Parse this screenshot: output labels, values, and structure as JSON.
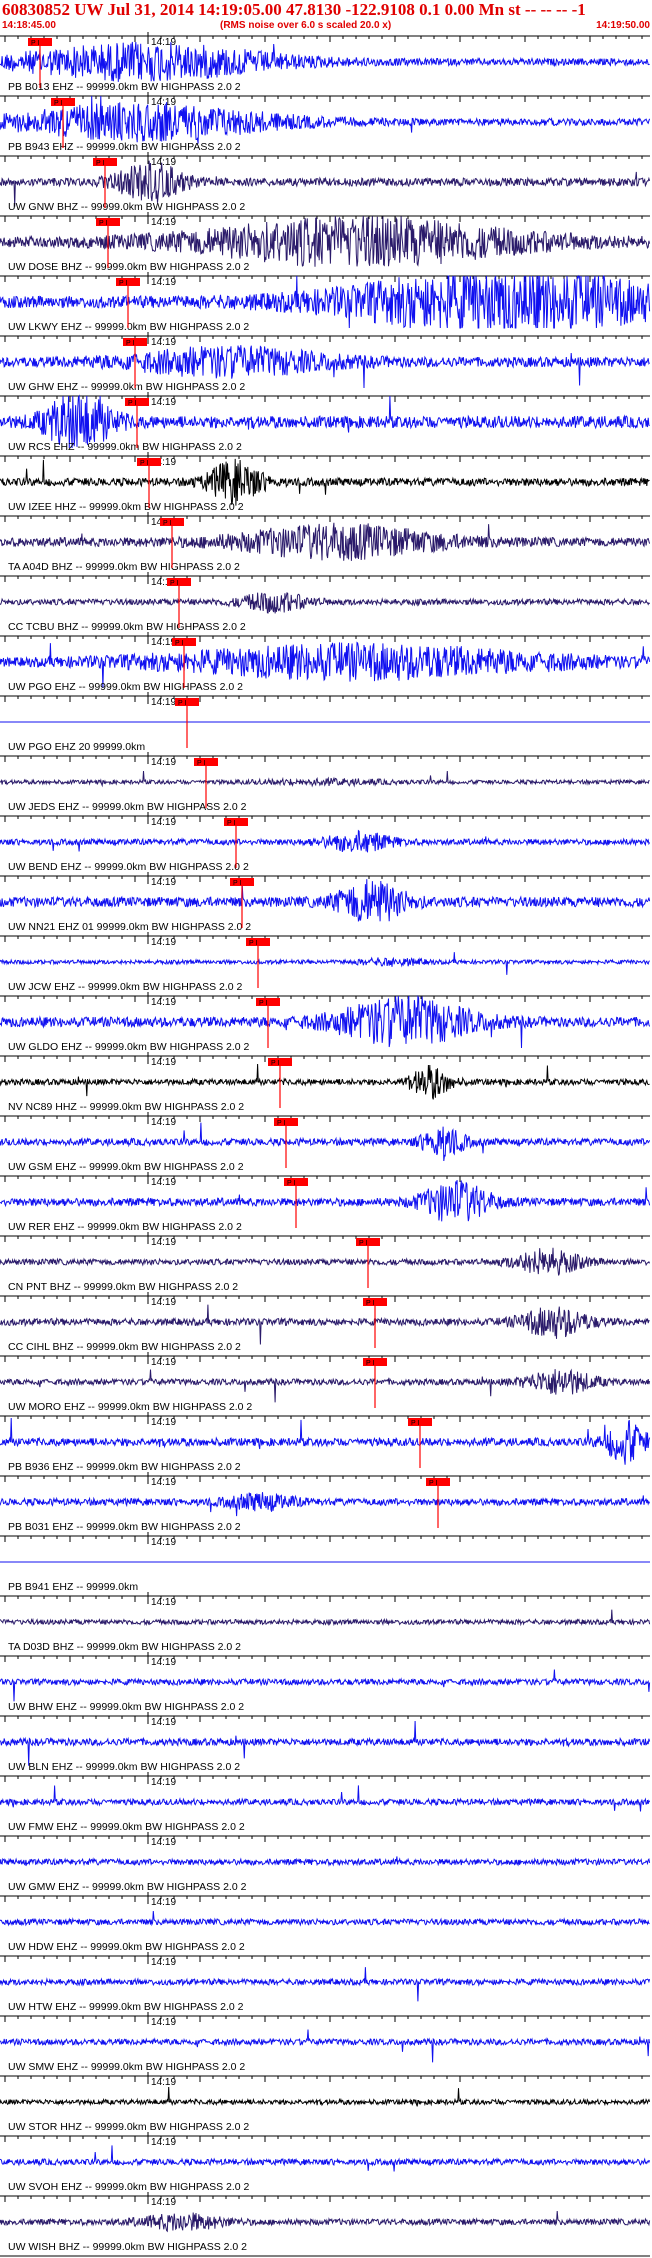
{
  "header": {
    "title": "60830852 UW Jul 31, 2014 14:19:05.00   47.8130 -122.9108  0.1 0.00 Mn st -- -- --  -1",
    "start_time": "14:18:45.00",
    "rms_note": "(RMS noise over 6.0 s scaled 20.0 x)",
    "end_time": "14:19:50.00"
  },
  "tick_label": "14:19",
  "pick_tag": "P I",
  "colors": {
    "blue": "#1010f0",
    "purple": "#2a1a6a",
    "black": "#000000",
    "pick": "#ff0000",
    "text": "#000000",
    "title": "#e00000"
  },
  "chart_data": {
    "type": "line",
    "time_range": [
      "14:18:45.00",
      "14:19:50.00"
    ],
    "traces": [
      {
        "label": "PB B013 EHZ -- 99999.0km BW  HIGHPASS  2.0  2",
        "color": "blue",
        "amp": 0.35,
        "pick": 40,
        "event": [
          0.22,
          0.2,
          1.0
        ]
      },
      {
        "label": "PB B943 EHZ -- 99999.0km BW  HIGHPASS  2.0  2",
        "color": "blue",
        "amp": 0.35,
        "pick": 63,
        "event": [
          0.22,
          0.2,
          1.0
        ]
      },
      {
        "label": "UW GNW BHZ -- 99999.0km BW  HIGHPASS  2.0  2",
        "color": "purple",
        "amp": 0.4,
        "pick": 105,
        "event": [
          0.23,
          0.05,
          0.9
        ]
      },
      {
        "label": "UW DOSE BHZ -- 99999.0km BW  HIGHPASS  2.0  2",
        "color": "purple",
        "amp": 0.5,
        "pick": 108,
        "event": [
          0.55,
          0.25,
          0.9
        ]
      },
      {
        "label": "UW LKWY EHZ -- 99999.0km BW  HIGHPASS  2.0  2",
        "color": "blue",
        "amp": 0.6,
        "pick": 128,
        "event": [
          0.78,
          0.25,
          1.0
        ]
      },
      {
        "label": "UW GHW EHZ -- 99999.0km BW  HIGHPASS  2.0  2",
        "color": "blue",
        "amp": 0.5,
        "pick": 135,
        "event": [
          0.35,
          0.15,
          0.5
        ]
      },
      {
        "label": "UW RCS EHZ -- 99999.0km BW  HIGHPASS  2.0  2",
        "color": "blue",
        "amp": 0.6,
        "pick": 137,
        "event": [
          0.12,
          0.05,
          0.9
        ]
      },
      {
        "label": "UW IZEE HHZ -- 99999.0km BW  HIGHPASS  2.0  2",
        "color": "black",
        "amp": 0.4,
        "pick": 149,
        "event": [
          0.36,
          0.04,
          1.0
        ]
      },
      {
        "label": "TA A04D BHZ -- 99999.0km BW  HIGHPASS  2.0  2",
        "color": "purple",
        "amp": 0.45,
        "pick": 172,
        "event": [
          0.52,
          0.15,
          0.7
        ]
      },
      {
        "label": "CC TCBU BHZ -- 99999.0km BW  HIGHPASS  2.0  2",
        "color": "purple",
        "amp": 0.3,
        "pick": 179,
        "event": [
          0.42,
          0.05,
          0.6
        ]
      },
      {
        "label": "UW PGO EHZ -- 99999.0km BW  HIGHPASS  2.0  2",
        "color": "blue",
        "amp": 0.4,
        "pick": 184,
        "event": [
          0.55,
          0.3,
          0.8
        ]
      },
      {
        "label": "UW PGO EHZ 20 99999.0km",
        "color": "blue",
        "amp": 0.0,
        "pick": 187,
        "event": [
          0.55,
          0.3,
          0.0
        ]
      },
      {
        "label": "UW JEDS EHZ -- 99999.0km BW  HIGHPASS  2.0  2",
        "color": "purple",
        "amp": 0.2,
        "pick": 206,
        "event": [
          0.5,
          0.1,
          0.2
        ]
      },
      {
        "label": "UW BEND EHZ -- 99999.0km BW  HIGHPASS  2.0  2",
        "color": "blue",
        "amp": 0.3,
        "pick": 236,
        "event": [
          0.55,
          0.05,
          0.6
        ]
      },
      {
        "label": "UW NN21 EHZ 01 99999.0km BW  HIGHPASS  2.0  2",
        "color": "blue",
        "amp": 0.5,
        "pick": 242,
        "event": [
          0.57,
          0.05,
          0.8
        ]
      },
      {
        "label": "UW JCW EHZ -- 99999.0km BW  HIGHPASS  2.0  2",
        "color": "blue",
        "amp": 0.2,
        "pick": 258,
        "event": [
          0.6,
          0.05,
          0.3
        ]
      },
      {
        "label": "UW GLDO EHZ -- 99999.0km BW  HIGHPASS  2.0  2",
        "color": "blue",
        "amp": 0.5,
        "pick": 268,
        "event": [
          0.62,
          0.1,
          0.9
        ]
      },
      {
        "label": "NV NC89 HHZ -- 99999.0km BW  HIGHPASS  2.0  2",
        "color": "black",
        "amp": 0.3,
        "pick": 280,
        "event": [
          0.66,
          0.03,
          1.0
        ]
      },
      {
        "label": "UW GSM EHZ -- 99999.0km BW  HIGHPASS  2.0  2",
        "color": "blue",
        "amp": 0.35,
        "pick": 286,
        "event": [
          0.68,
          0.03,
          0.9
        ]
      },
      {
        "label": "UW RER EHZ -- 99999.0km BW  HIGHPASS  2.0  2",
        "color": "blue",
        "amp": 0.4,
        "pick": 296,
        "event": [
          0.7,
          0.05,
          1.0
        ]
      },
      {
        "label": "CN PNT BHZ -- 99999.0km BW  HIGHPASS  2.0  2",
        "color": "purple",
        "amp": 0.3,
        "pick": 368,
        "event": [
          0.84,
          0.05,
          0.8
        ]
      },
      {
        "label": "CC CIHL BHZ -- 99999.0km BW  HIGHPASS  2.0  2",
        "color": "purple",
        "amp": 0.35,
        "pick": 375,
        "event": [
          0.85,
          0.05,
          0.8
        ]
      },
      {
        "label": "UW MORO EHZ -- 99999.0km BW  HIGHPASS  2.0  2",
        "color": "purple",
        "amp": 0.3,
        "pick": 375,
        "event": [
          0.86,
          0.05,
          0.8
        ]
      },
      {
        "label": "PB B936 EHZ -- 99999.0km BW  HIGHPASS  2.0  2",
        "color": "blue",
        "amp": 0.4,
        "pick": 420,
        "event": [
          0.96,
          0.03,
          1.0
        ]
      },
      {
        "label": "PB B031 EHZ -- 99999.0km BW  HIGHPASS  2.0  2",
        "color": "blue",
        "amp": 0.35,
        "pick": 438,
        "event": [
          0.4,
          0.05,
          0.4
        ]
      },
      {
        "label": "PB B941 EHZ -- 99999.0km",
        "color": "blue",
        "amp": 0.0,
        "pick": null,
        "event": [
          0.5,
          0.1,
          0.0
        ]
      },
      {
        "label": "TA D03D BHZ -- 99999.0km BW  HIGHPASS  2.0  2",
        "color": "purple",
        "amp": 0.25,
        "pick": null,
        "event": [
          0.5,
          0.1,
          0.0
        ]
      },
      {
        "label": "UW BHW EHZ -- 99999.0km BW  HIGHPASS  2.0  2",
        "color": "blue",
        "amp": 0.3,
        "pick": null,
        "event": [
          0.5,
          0.1,
          0.0
        ]
      },
      {
        "label": "UW BLN EHZ -- 99999.0km BW  HIGHPASS  2.0  2",
        "color": "blue",
        "amp": 0.35,
        "pick": null,
        "event": [
          0.5,
          0.1,
          0.0
        ]
      },
      {
        "label": "UW FMW EHZ -- 99999.0km BW  HIGHPASS  2.0  2",
        "color": "blue",
        "amp": 0.3,
        "pick": null,
        "event": [
          0.5,
          0.1,
          0.0
        ]
      },
      {
        "label": "UW GMW EHZ -- 99999.0km BW  HIGHPASS  2.0  2",
        "color": "blue",
        "amp": 0.3,
        "pick": null,
        "event": [
          0.5,
          0.1,
          0.0
        ]
      },
      {
        "label": "UW HDW EHZ -- 99999.0km BW  HIGHPASS  2.0  2",
        "color": "blue",
        "amp": 0.3,
        "pick": null,
        "event": [
          0.5,
          0.1,
          0.0
        ]
      },
      {
        "label": "UW HTW EHZ -- 99999.0km BW  HIGHPASS  2.0  2",
        "color": "blue",
        "amp": 0.3,
        "pick": null,
        "event": [
          0.5,
          0.1,
          0.0
        ]
      },
      {
        "label": "UW SMW EHZ -- 99999.0km BW  HIGHPASS  2.0  2",
        "color": "blue",
        "amp": 0.3,
        "pick": null,
        "event": [
          0.5,
          0.1,
          0.0
        ]
      },
      {
        "label": "UW STOR HHZ -- 99999.0km BW  HIGHPASS  2.0  2",
        "color": "black",
        "amp": 0.25,
        "pick": null,
        "event": [
          0.5,
          0.1,
          0.0
        ]
      },
      {
        "label": "UW SVOH EHZ -- 99999.0km BW  HIGHPASS  2.0  2",
        "color": "blue",
        "amp": 0.3,
        "pick": null,
        "event": [
          0.5,
          0.1,
          0.0
        ]
      },
      {
        "label": "UW WISH BHZ -- 99999.0km BW  HIGHPASS  2.0  2",
        "color": "purple",
        "amp": 0.3,
        "pick": null,
        "event": [
          0.28,
          0.06,
          0.5
        ]
      }
    ]
  }
}
